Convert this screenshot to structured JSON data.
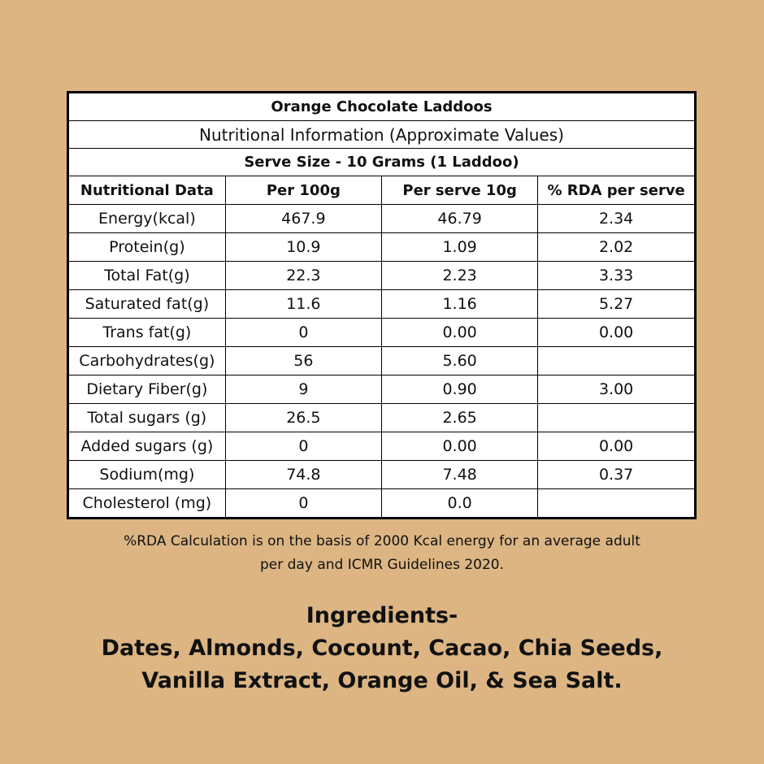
{
  "table": {
    "title": "Orange Chocolate Laddoos",
    "subtitle": "Nutritional Information (Approximate Values)",
    "serve_size": "Serve Size - 10 Grams (1 Laddoo)",
    "columns": [
      "Nutritional Data",
      "Per 100g",
      "Per serve 10g",
      "% RDA per serve"
    ],
    "rows": [
      [
        "Energy(kcal)",
        "467.9",
        "46.79",
        "2.34"
      ],
      [
        "Protein(g)",
        "10.9",
        "1.09",
        "2.02"
      ],
      [
        "Total Fat(g)",
        "22.3",
        "2.23",
        "3.33"
      ],
      [
        "Saturated fat(g)",
        "11.6",
        "1.16",
        "5.27"
      ],
      [
        "Trans fat(g)",
        "0",
        "0.00",
        "0.00"
      ],
      [
        "Carbohydrates(g)",
        "56",
        "5.60",
        null
      ],
      [
        "Dietary Fiber(g)",
        "9",
        "0.90",
        "3.00"
      ],
      [
        "Total sugars (g)",
        "26.5",
        "2.65",
        null
      ],
      [
        "Added sugars (g)",
        "0",
        "0.00",
        "0.00"
      ],
      [
        "Sodium(mg)",
        "74.8",
        "7.48",
        "0.37"
      ],
      [
        "Cholesterol (mg)",
        "0",
        "0.0",
        null
      ]
    ]
  },
  "footnote": [
    "%RDA Calculation is on the basis of 2000 Kcal energy for an average adult",
    "per day and ICMR Guidelines 2020."
  ],
  "ingredients": {
    "heading": "Ingredients-",
    "lines": [
      "Dates, Almonds, Cocount, Cacao, Chia Seeds,",
      "Vanilla Extract, Orange Oil, & Sea Salt."
    ]
  }
}
